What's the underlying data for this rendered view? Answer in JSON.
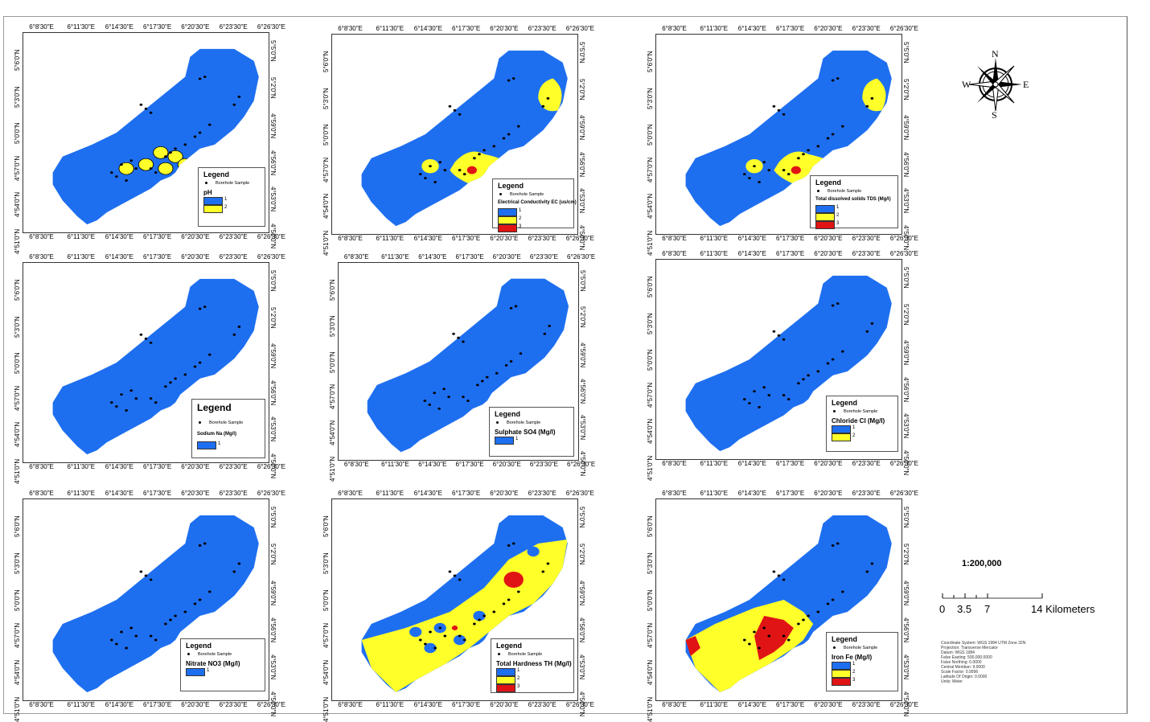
{
  "colors": {
    "class1": "#1e6ff0",
    "class2": "#ffff2a",
    "class3": "#e01414",
    "frame": "#333333"
  },
  "x_ticks": [
    "6°8'30\"E",
    "6°11'30\"E",
    "6°14'30\"E",
    "6°17'30\"E",
    "6°20'30\"E",
    "6°23'30\"E",
    "6°26'30\"E"
  ],
  "y_ticks_left": [
    "5°6'0\"N",
    "5°3'0\"N",
    "5°0'0\"N",
    "4°57'0\"N",
    "4°54'0\"N",
    "4°51'0\"N"
  ],
  "y_ticks_right": [
    "5°5'0\"N",
    "5°2'0\"N",
    "4°59'0\"N",
    "4°56'0\"N",
    "4°53'0\"N",
    "4°50'0\"N"
  ],
  "maps": [
    {
      "id": "ph",
      "legend_title": "Legend",
      "sample_label": "Borehole Sample",
      "parameter": "pH",
      "classes": [
        "1",
        "2"
      ],
      "pattern": "ph"
    },
    {
      "id": "ec",
      "legend_title": "Legend",
      "sample_label": "Borehole Sample",
      "parameter": "Electrical Conductivity EC (us/cm)",
      "classes": [
        "1",
        "2",
        "3"
      ],
      "pattern": "ec"
    },
    {
      "id": "tds",
      "legend_title": "Legend",
      "sample_label": "Borehole Sample",
      "parameter": "Total dissolved solids TDS (Mg/l)",
      "classes": [
        "1",
        "2",
        "3"
      ],
      "pattern": "tds"
    },
    {
      "id": "na",
      "legend_title": "Legend",
      "sample_label": "Borehole Sample",
      "parameter": "Sodium Na (Mg/l)",
      "classes": [
        "1"
      ],
      "pattern": "blue"
    },
    {
      "id": "so4",
      "legend_title": "Legend",
      "sample_label": "Borehole Sample",
      "parameter": "Sulphate SO4 (Mg/l)",
      "classes": [
        "1"
      ],
      "pattern": "blue"
    },
    {
      "id": "cl",
      "legend_title": "Legend",
      "sample_label": "Borehole Sample",
      "parameter": "Chloride Cl (Mg/l)",
      "classes": [
        "1",
        "2"
      ],
      "pattern": "blue"
    },
    {
      "id": "no3",
      "legend_title": "Legend",
      "sample_label": "Borehole Sample",
      "parameter": "Nitrate NO3 (Mg/l)",
      "classes": [
        "1"
      ],
      "pattern": "blue"
    },
    {
      "id": "th",
      "legend_title": "Legend",
      "sample_label": "Borehole Sample",
      "parameter": "Total Hardness TH (Mg/l)",
      "classes": [
        "1",
        "2",
        "3"
      ],
      "pattern": "th"
    },
    {
      "id": "fe",
      "legend_title": "Legend",
      "sample_label": "Borehole Sample",
      "parameter": "Iron Fe (Mg/l)",
      "classes": [
        "1",
        "2",
        "3"
      ],
      "pattern": "fe"
    }
  ],
  "compass": {
    "n": "N",
    "s": "S",
    "e": "E",
    "w": "W"
  },
  "scale": {
    "ratio": "1:200,000",
    "labels": [
      "0",
      "3.5",
      "7",
      "14 Kilometers"
    ]
  },
  "metadata": [
    "Coordinate System: WGS 1984 UTM Zone 32N",
    "Projection: Transverse Mercator",
    "Datum: WGS 1984",
    "False Easting: 500,000.0000",
    "False Northing: 0.0000",
    "Central Meridian: 9.0000",
    "Scale Factor: 0.9996",
    "Latitude Of Origin: 0.0000",
    "Units: Meter"
  ]
}
